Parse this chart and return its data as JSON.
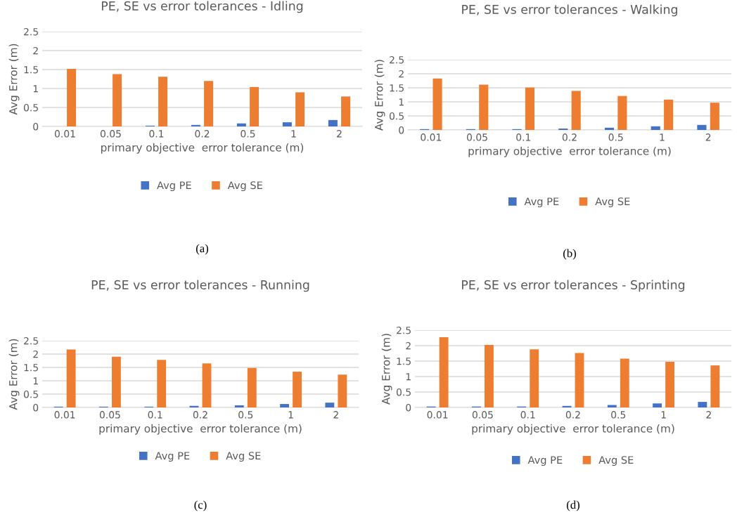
{
  "chart_data": [
    {
      "type": "bar",
      "title": "PE, SE vs error tolerances - Idling",
      "xlabel": "primary objective  error tolerance (m)",
      "ylabel": "Avg Error (m)",
      "categories": [
        "0.01",
        "0.05",
        "0.1",
        "0.2",
        "0.5",
        "1",
        "2"
      ],
      "series": [
        {
          "name": "Avg PE",
          "color": "#4472c4",
          "values": [
            0,
            0,
            0.02,
            0.04,
            0.08,
            0.11,
            0.17
          ]
        },
        {
          "name": "Avg SE",
          "color": "#ed7d31",
          "values": [
            1.52,
            1.38,
            1.31,
            1.2,
            1.04,
            0.9,
            0.79
          ]
        }
      ],
      "ylim": [
        0,
        2.5
      ],
      "yticks": [
        0,
        0.5,
        1,
        1.5,
        2,
        2.5
      ],
      "grid": "y",
      "legend": "bottom",
      "annotations": [
        "(a)"
      ]
    },
    {
      "type": "bar",
      "title": "PE, SE vs error tolerances - Walking",
      "xlabel": "primary objective  error tolerance (m)",
      "ylabel": "Avg Error (m)",
      "categories": [
        "0.01",
        "0.05",
        "0.1",
        "0.2",
        "0.5",
        "1",
        "2"
      ],
      "series": [
        {
          "name": "Avg PE",
          "color": "#4472c4",
          "values": [
            0.03,
            0.03,
            0.03,
            0.05,
            0.08,
            0.13,
            0.18
          ]
        },
        {
          "name": "Avg SE",
          "color": "#ed7d31",
          "values": [
            1.83,
            1.61,
            1.51,
            1.39,
            1.21,
            1.08,
            0.97
          ]
        }
      ],
      "ylim": [
        0,
        2.5
      ],
      "yticks": [
        0,
        0.5,
        1,
        1.5,
        2,
        2.5
      ],
      "grid": "y",
      "legend": "bottom",
      "annotations": [
        "(b)"
      ]
    },
    {
      "type": "bar",
      "title": "PE, SE vs error tolerances - Running",
      "xlabel": "primary objective  error tolerance (m)",
      "ylabel": "Avg Error (m)",
      "categories": [
        "0.01",
        "0.05",
        "0.1",
        "0.2",
        "0.5",
        "1",
        "2"
      ],
      "series": [
        {
          "name": "Avg PE",
          "color": "#4472c4",
          "values": [
            0.03,
            0.03,
            0.03,
            0.06,
            0.08,
            0.13,
            0.18
          ]
        },
        {
          "name": "Avg SE",
          "color": "#ed7d31",
          "values": [
            2.17,
            1.9,
            1.78,
            1.65,
            1.48,
            1.34,
            1.23
          ]
        }
      ],
      "ylim": [
        0,
        2.5
      ],
      "yticks": [
        0,
        0.5,
        1,
        1.5,
        2,
        2.5
      ],
      "grid": "y",
      "legend": "bottom",
      "annotations": [
        "(c)"
      ]
    },
    {
      "type": "bar",
      "title": "PE, SE vs error tolerances - Sprinting",
      "xlabel": "primary objective  error tolerance (m)",
      "ylabel": "Avg Error (m)",
      "categories": [
        "0.01",
        "0.05",
        "0.1",
        "0.2",
        "0.5",
        "1",
        "2"
      ],
      "series": [
        {
          "name": "Avg PE",
          "color": "#4472c4",
          "values": [
            0.03,
            0.03,
            0.03,
            0.05,
            0.08,
            0.13,
            0.18
          ]
        },
        {
          "name": "Avg SE",
          "color": "#ed7d31",
          "values": [
            2.27,
            2.02,
            1.88,
            1.76,
            1.58,
            1.48,
            1.36
          ]
        }
      ],
      "ylim": [
        0,
        2.5
      ],
      "yticks": [
        0,
        0.5,
        1,
        1.5,
        2,
        2.5
      ],
      "grid": "y",
      "legend": "bottom",
      "annotations": [
        "(d)"
      ]
    }
  ]
}
